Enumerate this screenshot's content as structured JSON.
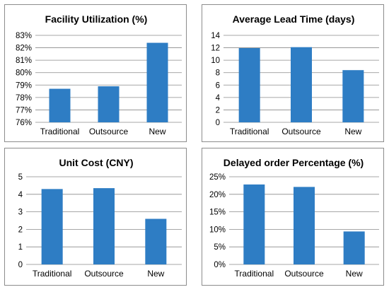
{
  "chart_data": [
    {
      "type": "bar",
      "title": "Facility Utilization (%)",
      "categories": [
        "Traditional",
        "Outsource",
        "New"
      ],
      "values": [
        78.7,
        78.9,
        82.4
      ],
      "ylim": [
        76,
        83
      ],
      "yticks": [
        76,
        77,
        78,
        79,
        80,
        81,
        82,
        83
      ],
      "ytick_labels": [
        "76%",
        "77%",
        "78%",
        "79%",
        "80%",
        "81%",
        "82%",
        "83%"
      ],
      "color": "#2e7dc4",
      "grid": "horizontal"
    },
    {
      "type": "bar",
      "title": "Average Lead Time (days)",
      "categories": [
        "Traditional",
        "Outsource",
        "New"
      ],
      "values": [
        11.95,
        12.1,
        8.4
      ],
      "ylim": [
        0,
        14
      ],
      "yticks": [
        0,
        2,
        4,
        6,
        8,
        10,
        12,
        14
      ],
      "ytick_labels": [
        "0",
        "2",
        "4",
        "6",
        "8",
        "10",
        "12",
        "14"
      ],
      "color": "#2e7dc4",
      "grid": "horizontal"
    },
    {
      "type": "bar",
      "title": "Unit Cost (CNY)",
      "categories": [
        "Traditional",
        "Outsource",
        "New"
      ],
      "values": [
        4.3,
        4.35,
        2.6
      ],
      "ylim": [
        0,
        5
      ],
      "yticks": [
        0,
        1,
        2,
        3,
        4,
        5
      ],
      "ytick_labels": [
        "0",
        "1",
        "2",
        "3",
        "4",
        "5"
      ],
      "color": "#2e7dc4",
      "grid": "horizontal"
    },
    {
      "type": "bar",
      "title": "Delayed order Percentage (%)",
      "categories": [
        "Traditional",
        "Outsource",
        "New"
      ],
      "values": [
        22.8,
        22.1,
        9.4
      ],
      "ylim": [
        0,
        25
      ],
      "yticks": [
        0,
        5,
        10,
        15,
        20,
        25
      ],
      "ytick_labels": [
        "0%",
        "5%",
        "10%",
        "15%",
        "20%",
        "25%"
      ],
      "color": "#2e7dc4",
      "grid": "horizontal"
    }
  ]
}
